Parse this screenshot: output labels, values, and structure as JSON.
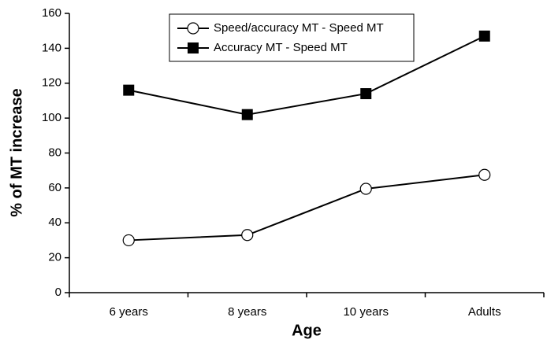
{
  "chart_data": {
    "type": "line",
    "x_label": "Age",
    "y_label": "% of MT increase",
    "categories": [
      "6 years",
      "8 years",
      "10 years",
      "Adults"
    ],
    "series": [
      {
        "name": "Speed/accuracy MT - Speed MT",
        "color": "#000000",
        "marker": "circle-open",
        "values": [
          30,
          33,
          59.5,
          67.5
        ]
      },
      {
        "name": "Accuracy MT - Speed MT",
        "color": "#000000",
        "marker": "square-filled",
        "values": [
          116,
          102,
          114,
          147
        ]
      }
    ],
    "ylim": [
      0,
      160
    ],
    "yticks": [
      0,
      20,
      40,
      60,
      80,
      100,
      120,
      140,
      160
    ],
    "grid": false
  }
}
